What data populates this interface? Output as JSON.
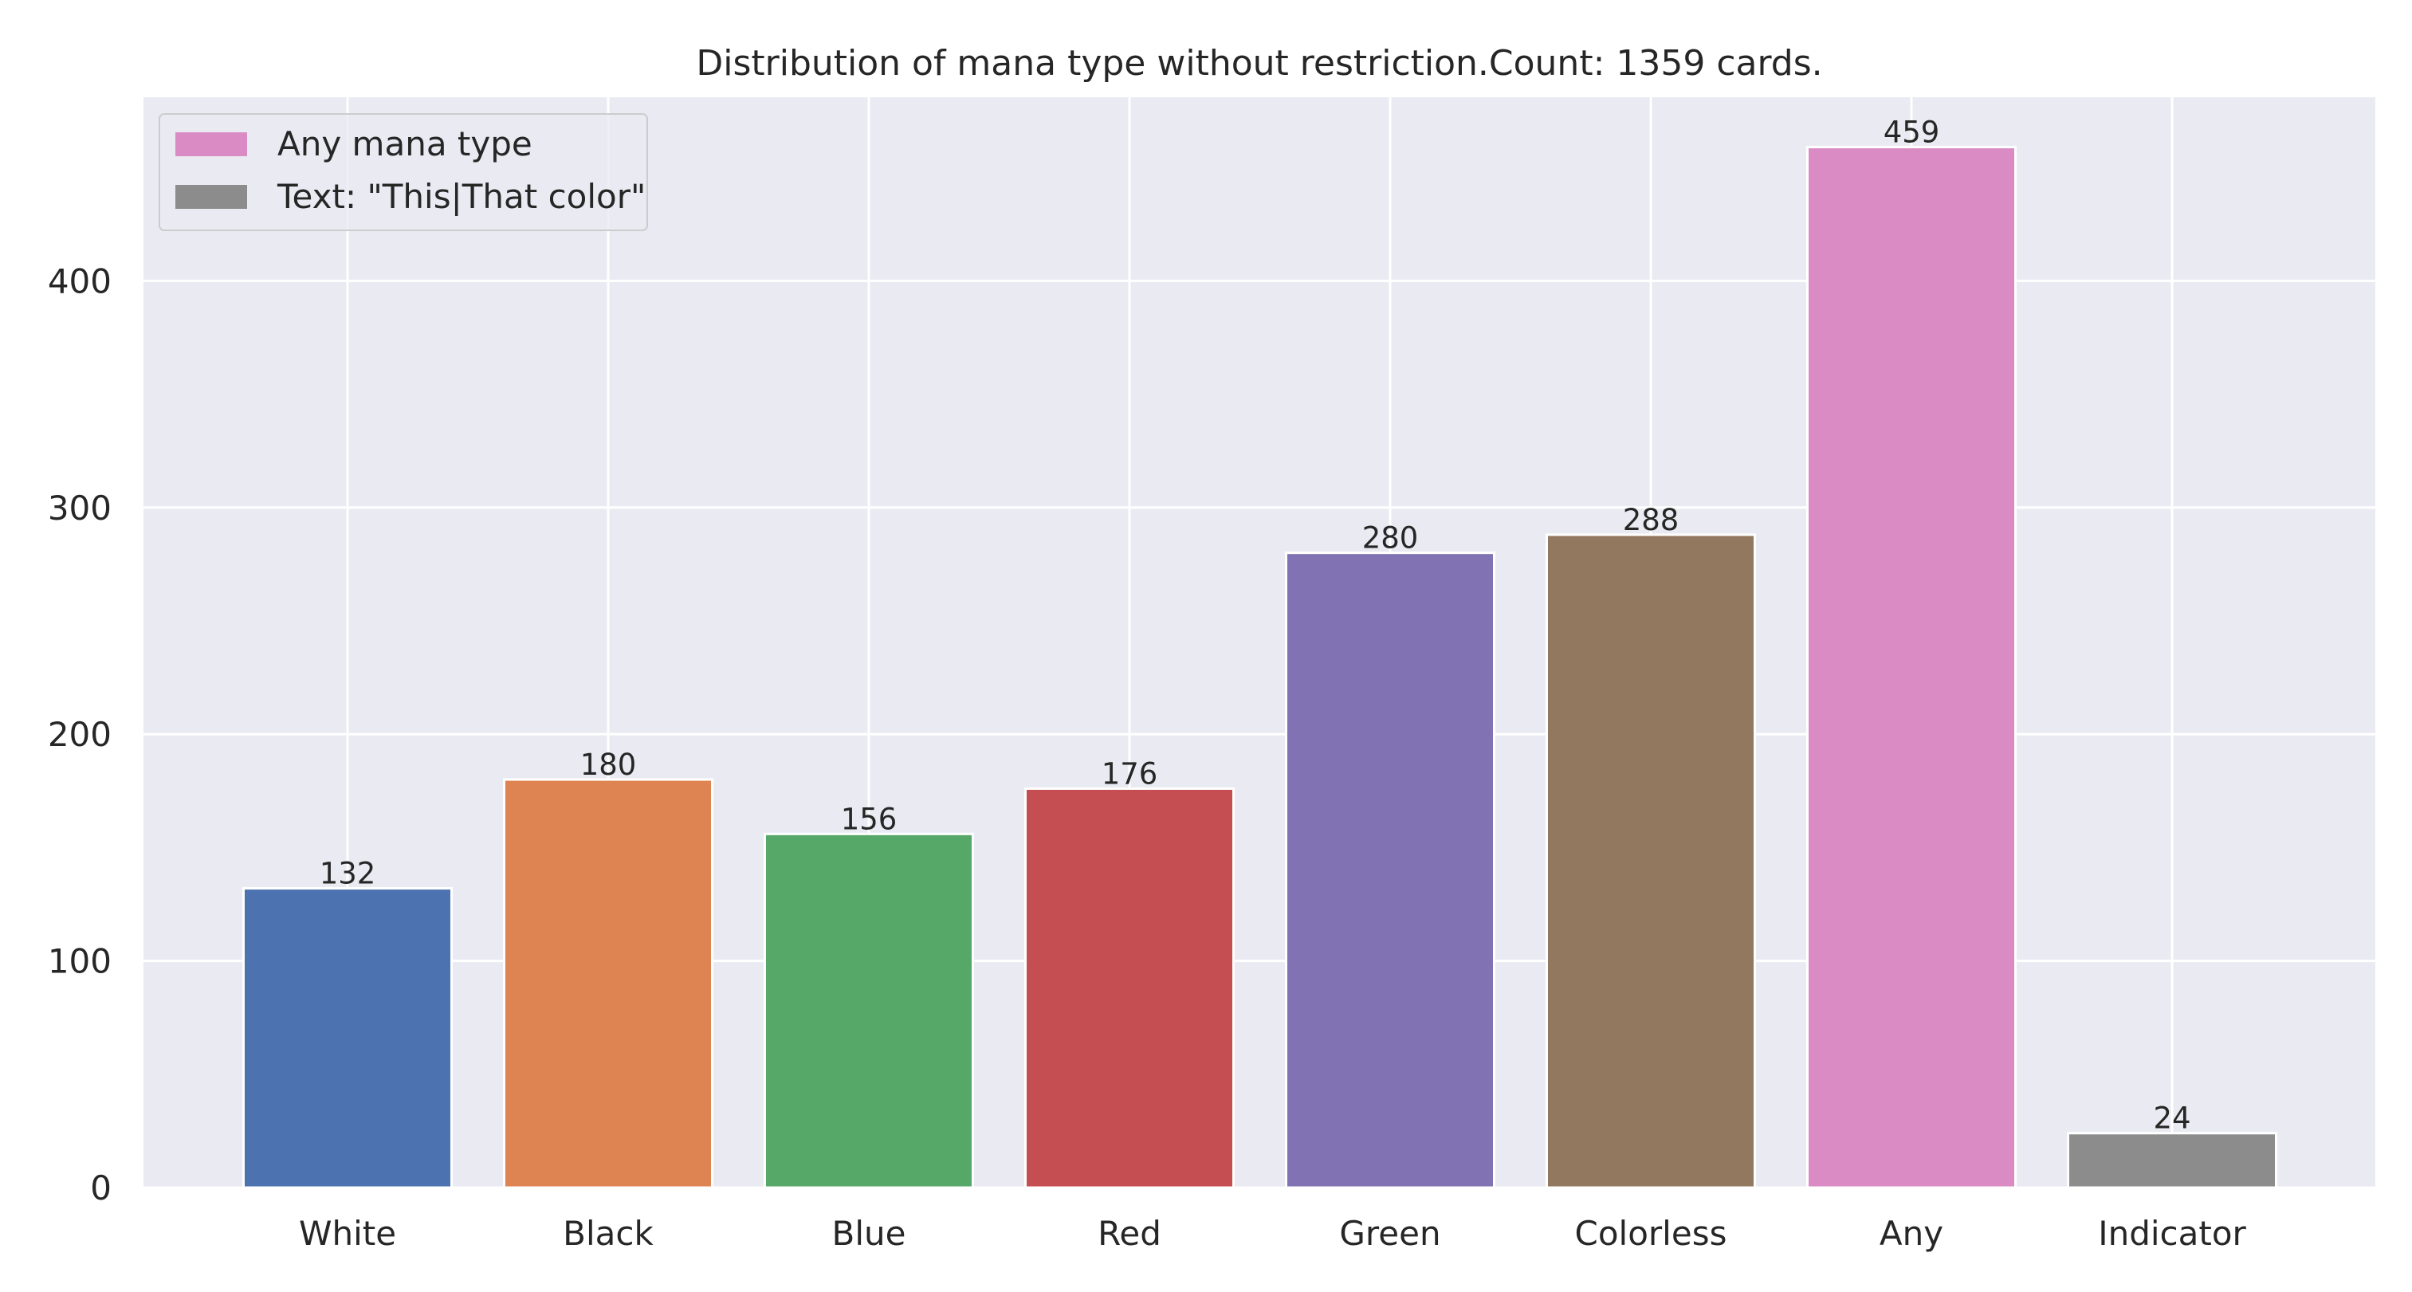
{
  "chart_data": {
    "type": "bar",
    "title": "Distribution of mana type without restriction.Count: 1359 cards.",
    "xlabel": "",
    "ylabel": "",
    "categories": [
      "White",
      "Black",
      "Blue",
      "Red",
      "Green",
      "Colorless",
      "Any",
      "Indicator"
    ],
    "values": [
      132,
      180,
      156,
      176,
      280,
      288,
      459,
      24
    ],
    "colors": [
      "#4c72b0",
      "#dd8452",
      "#55a868",
      "#c44e52",
      "#8172b3",
      "#937860",
      "#da8bc3",
      "#8c8c8c"
    ],
    "ylim": [
      0,
      481
    ],
    "yticks": [
      0,
      100,
      200,
      300,
      400
    ],
    "grid": true,
    "background": "#eaeaf2",
    "legend": {
      "placement": "top-left",
      "entries": [
        {
          "label": "Any mana type",
          "color": "#da8bc3"
        },
        {
          "label": "Text: \"This|That color\"",
          "color": "#8c8c8c"
        }
      ]
    }
  }
}
